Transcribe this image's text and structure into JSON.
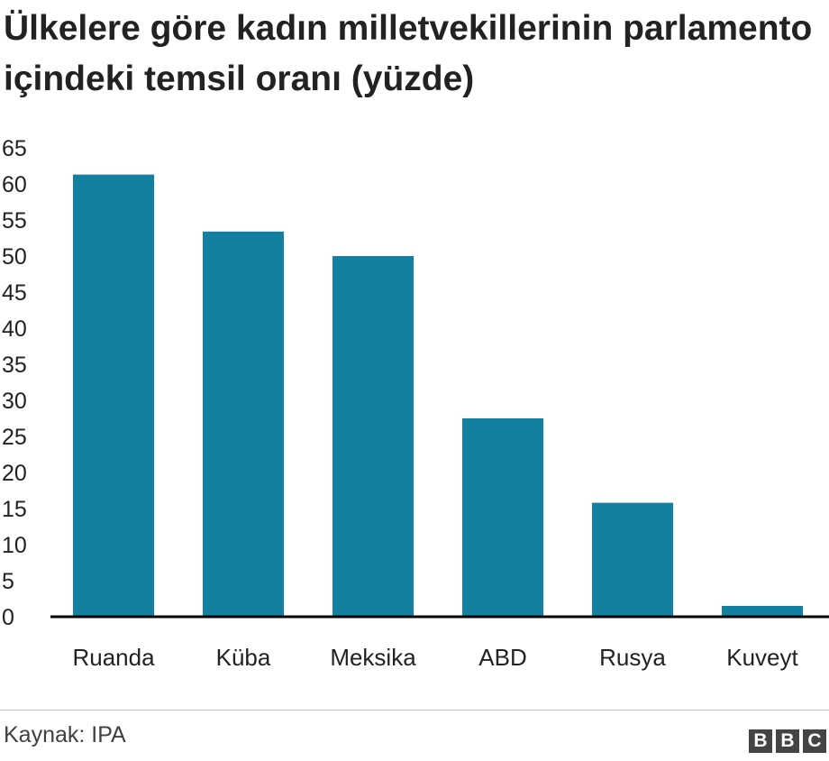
{
  "title": "Ülkelere göre kadın milletvekillerinin parlamento içindeki temsil oranı (yüzde)",
  "source": "Kaynak: IPA",
  "logo": {
    "text": "BBC",
    "letters": [
      "B",
      "B",
      "C"
    ]
  },
  "colors": {
    "bar": "#1380a1",
    "axis": "#000000",
    "text": "#222222"
  },
  "chart_data": {
    "type": "bar",
    "title": "Ülkelere göre kadın milletvekillerinin parlamento içindeki temsil oranı (yüzde)",
    "categories": [
      "Ruanda",
      "Küba",
      "Meksika",
      "ABD",
      "Rusya",
      "Kuveyt"
    ],
    "values": [
      61.3,
      53.4,
      50,
      27.5,
      15.8,
      1.5
    ],
    "xlabel": "",
    "ylabel": "",
    "ylim": [
      0,
      65
    ],
    "yticks": [
      0,
      5,
      10,
      15,
      20,
      25,
      30,
      35,
      40,
      45,
      50,
      55,
      60,
      65
    ],
    "grid": false,
    "legend": "none"
  }
}
